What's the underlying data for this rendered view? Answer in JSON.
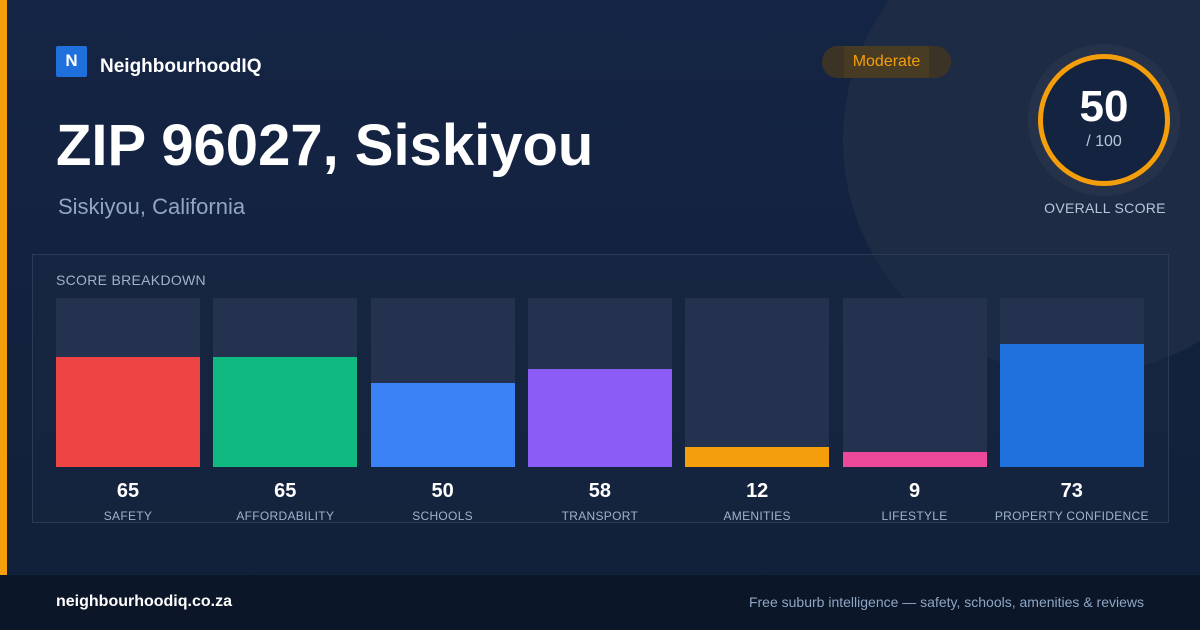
{
  "brand": {
    "logo_letter": "N",
    "name": "NeighbourhoodIQ"
  },
  "rating": {
    "label": "Moderate",
    "color": "#f59e0b"
  },
  "title": "ZIP 96027, Siskiyou",
  "subtitle": "Siskiyou, California",
  "overall": {
    "value": "50",
    "max_label": "/ 100",
    "caption": "OVERALL SCORE",
    "ring_color": "#f59e0b"
  },
  "breakdown_title": "SCORE BREAKDOWN",
  "chart_data": {
    "type": "bar",
    "title": "SCORE BREAKDOWN",
    "xlabel": "",
    "ylabel": "",
    "ylim": [
      0,
      100
    ],
    "grid": false,
    "categories": [
      "SAFETY",
      "AFFORDABILITY",
      "SCHOOLS",
      "TRANSPORT",
      "AMENITIES",
      "LIFESTYLE",
      "PROPERTY CONFIDENCE"
    ],
    "values": [
      65,
      65,
      50,
      58,
      12,
      9,
      73
    ],
    "colors": [
      "#ef4444",
      "#10b981",
      "#3b82f6",
      "#8b5cf6",
      "#f59e0b",
      "#ec4899",
      "#1f6fdc"
    ]
  },
  "footer": {
    "url": "neighbourhoodiq.co.za",
    "tagline": "Free suburb intelligence — safety, schools, amenities & reviews"
  }
}
